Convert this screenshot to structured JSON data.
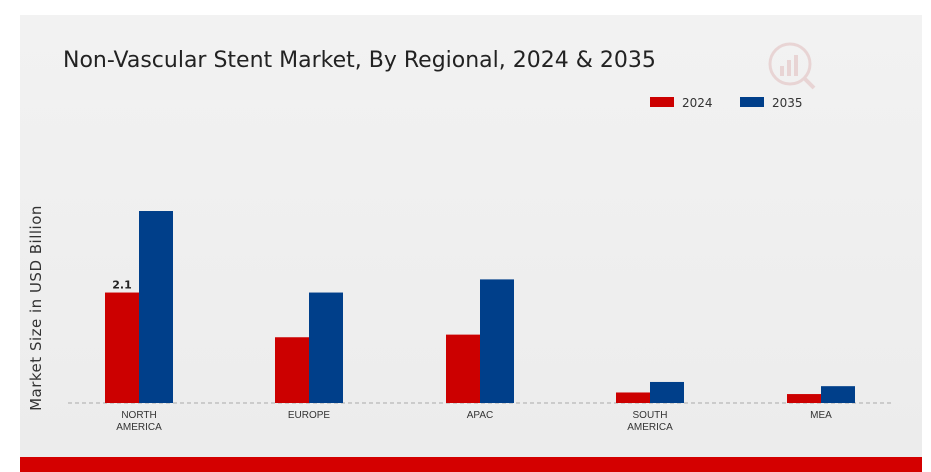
{
  "chart_data": {
    "type": "bar",
    "title": "Non-Vascular Stent Market, By Regional, 2024 & 2035",
    "xlabel": "",
    "ylabel": "Market Size in USD Billion",
    "categories": [
      [
        "NORTH",
        "AMERICA"
      ],
      [
        "EUROPE"
      ],
      [
        "APAC"
      ],
      [
        "SOUTH",
        "AMERICA"
      ],
      [
        "MEA"
      ]
    ],
    "series": [
      {
        "name": "2024",
        "color": "#cc0000",
        "values": [
          2.1,
          1.25,
          1.3,
          0.2,
          0.17
        ]
      },
      {
        "name": "2035",
        "color": "#003f8a",
        "values": [
          3.65,
          2.1,
          2.35,
          0.4,
          0.32
        ]
      }
    ],
    "data_labels": [
      {
        "series": 0,
        "index": 0,
        "text": "2.1"
      }
    ],
    "ylim": [
      0,
      5.0
    ],
    "legend_position": "top-right",
    "grid": false,
    "baseline": "dashed"
  }
}
